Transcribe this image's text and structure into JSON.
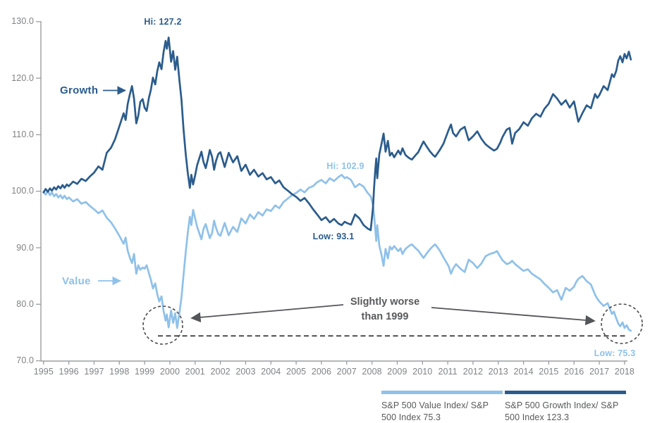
{
  "colors": {
    "growth": "#2b5c8c",
    "value": "#8fc1e9",
    "annotation_gray": "#58595b",
    "axis_gray": "#9b9da0",
    "tick_label_gray": "#808285"
  },
  "y_axis": {
    "labels": [
      "130.0",
      "120.0",
      "110.0",
      "100.0",
      "90.0",
      "80.0",
      "70.0"
    ]
  },
  "x_axis": {
    "labels": [
      "1995",
      "1996",
      "1997",
      "1998",
      "1999",
      "2000",
      "2001",
      "2002",
      "2003",
      "2004",
      "2005",
      "2006",
      "2007",
      "2008",
      "2009",
      "2010",
      "2011",
      "2012",
      "2013",
      "2014",
      "2015",
      "2016",
      "2017",
      "2018"
    ]
  },
  "annotations": {
    "growth_label": "Growth",
    "value_label": "Value",
    "hi_growth": "Hi: 127.2",
    "hi_value": "Hi: 102.9",
    "low_growth": "Low: 93.1",
    "low_value": "Low: 75.3",
    "callout_line1": "Slightly worse",
    "callout_line2": "than 1999"
  },
  "legend": {
    "items": [
      {
        "label": "S&P 500 Value Index/ S&P 500 Index 75.3",
        "color": "#8fc1e9"
      },
      {
        "label": "S&P 500 Growth Index/ S&P 500 Index 123.3",
        "color": "#2b5c8c"
      }
    ]
  },
  "chart_data": {
    "type": "line",
    "title": "",
    "xlabel": "",
    "ylabel": "",
    "xlim": [
      1995,
      2018.6
    ],
    "ylim": [
      70,
      130
    ],
    "y_ticks": [
      130,
      120,
      110,
      100,
      90,
      80,
      70
    ],
    "x_tick_start": 1995,
    "grid": false,
    "legend_position": "bottom-right",
    "extremes": {
      "growth_hi": 127.2,
      "growth_low": 93.1,
      "value_hi": 102.9,
      "value_low": 75.3,
      "growth_end": 123.3,
      "value_end": 75.3
    },
    "dashed_reference_value": 74.4,
    "x": [
      1995.0,
      1995.08,
      1995.17,
      1995.25,
      1995.33,
      1995.42,
      1995.5,
      1995.58,
      1995.67,
      1995.75,
      1995.83,
      1995.92,
      1996.0,
      1996.17,
      1996.33,
      1996.5,
      1996.67,
      1996.83,
      1997.0,
      1997.17,
      1997.33,
      1997.5,
      1997.67,
      1997.83,
      1998.0,
      1998.17,
      1998.25,
      1998.33,
      1998.42,
      1998.5,
      1998.58,
      1998.67,
      1998.75,
      1998.83,
      1998.92,
      1999.0,
      1999.08,
      1999.17,
      1999.25,
      1999.33,
      1999.42,
      1999.5,
      1999.58,
      1999.67,
      1999.75,
      1999.83,
      1999.88,
      1999.95,
      2000.05,
      2000.13,
      2000.21,
      2000.29,
      2000.38,
      2000.46,
      2000.54,
      2000.63,
      2000.71,
      2000.79,
      2000.85,
      2000.92,
      2001.0,
      2001.08,
      2001.17,
      2001.25,
      2001.33,
      2001.42,
      2001.5,
      2001.58,
      2001.67,
      2001.75,
      2001.83,
      2001.92,
      2002.0,
      2002.17,
      2002.33,
      2002.5,
      2002.67,
      2002.83,
      2003.0,
      2003.17,
      2003.33,
      2003.5,
      2003.67,
      2003.83,
      2004.0,
      2004.17,
      2004.33,
      2004.5,
      2004.67,
      2004.83,
      2005.0,
      2005.17,
      2005.33,
      2005.5,
      2005.67,
      2005.83,
      2006.0,
      2006.17,
      2006.33,
      2006.5,
      2006.67,
      2006.8,
      2006.92,
      2007.0,
      2007.17,
      2007.33,
      2007.5,
      2007.67,
      2007.83,
      2007.95,
      2008.04,
      2008.08,
      2008.13,
      2008.17,
      2008.21,
      2008.29,
      2008.38,
      2008.46,
      2008.54,
      2008.63,
      2008.71,
      2008.79,
      2008.88,
      2009.04,
      2009.13,
      2009.21,
      2009.33,
      2009.46,
      2009.58,
      2009.71,
      2009.83,
      2009.93,
      2010.04,
      2010.17,
      2010.29,
      2010.42,
      2010.5,
      2010.67,
      2010.83,
      2011.04,
      2011.13,
      2011.21,
      2011.33,
      2011.5,
      2011.67,
      2011.83,
      2012.0,
      2012.17,
      2012.33,
      2012.5,
      2012.67,
      2012.83,
      2012.95,
      2013.08,
      2013.17,
      2013.33,
      2013.45,
      2013.55,
      2013.67,
      2013.83,
      2014.0,
      2014.17,
      2014.33,
      2014.5,
      2014.67,
      2014.83,
      2015.0,
      2015.17,
      2015.33,
      2015.5,
      2015.67,
      2015.83,
      2016.0,
      2016.08,
      2016.17,
      2016.33,
      2016.5,
      2016.67,
      2016.83,
      2016.92,
      2017.0,
      2017.17,
      2017.33,
      2017.5,
      2017.58,
      2017.67,
      2017.75,
      2017.83,
      2017.92,
      2018.0,
      2018.08,
      2018.17,
      2018.25
    ],
    "series": [
      {
        "name": "S&P 500 Growth Index / S&P 500 Index",
        "color": "#2b5c8c",
        "values": [
          99.8,
          100.4,
          99.9,
          100.5,
          100.1,
          100.7,
          100.3,
          100.9,
          100.5,
          101.1,
          100.6,
          101.2,
          100.9,
          101.7,
          101.3,
          102.2,
          101.8,
          102.6,
          103.3,
          104.4,
          103.8,
          106.8,
          107.7,
          109.2,
          111.5,
          113.8,
          112.6,
          115.4,
          117.2,
          118.6,
          116.4,
          112.0,
          113.4,
          115.8,
          116.3,
          114.8,
          114.2,
          116.5,
          118.0,
          120.1,
          118.9,
          121.2,
          122.8,
          121.6,
          124.6,
          126.6,
          125.2,
          127.2,
          122.9,
          124.8,
          121.5,
          123.8,
          119.5,
          116.2,
          111.0,
          106.5,
          103.2,
          100.6,
          102.9,
          101.2,
          102.8,
          104.6,
          105.9,
          107.0,
          105.2,
          104.1,
          105.6,
          107.3,
          106.1,
          103.8,
          105.4,
          106.6,
          106.9,
          104.3,
          106.8,
          105.1,
          106.2,
          103.6,
          104.7,
          102.9,
          103.8,
          102.6,
          103.2,
          102.1,
          102.5,
          101.4,
          101.9,
          100.7,
          100.1,
          99.5,
          99.0,
          98.3,
          98.8,
          97.9,
          96.8,
          95.9,
          94.9,
          95.4,
          94.5,
          95.1,
          94.3,
          94.0,
          94.6,
          94.4,
          94.1,
          95.9,
          95.2,
          94.0,
          93.4,
          93.1,
          97.0,
          100.4,
          103.6,
          105.8,
          102.3,
          106.5,
          108.4,
          110.2,
          107.0,
          108.9,
          106.3,
          106.8,
          106.0,
          107.2,
          106.5,
          107.6,
          106.4,
          105.9,
          105.6,
          106.3,
          106.9,
          107.8,
          108.8,
          107.9,
          107.1,
          106.4,
          106.1,
          107.2,
          108.4,
          110.9,
          111.8,
          110.3,
          109.7,
          110.9,
          111.4,
          109.0,
          109.7,
          110.6,
          109.3,
          108.3,
          107.7,
          107.2,
          107.5,
          108.6,
          109.6,
          110.9,
          111.2,
          108.4,
          110.3,
          111.0,
          112.2,
          111.6,
          112.9,
          113.7,
          113.2,
          114.6,
          115.5,
          117.2,
          116.4,
          115.3,
          116.1,
          114.8,
          115.9,
          114.2,
          112.3,
          113.8,
          115.2,
          114.7,
          117.2,
          116.5,
          117.0,
          118.6,
          117.9,
          120.7,
          120.2,
          121.3,
          123.1,
          123.9,
          122.8,
          124.3,
          123.5,
          124.7,
          123.3
        ]
      },
      {
        "name": "S&P 500 Value Index / S&P 500 Index",
        "color": "#8fc1e9",
        "values": [
          99.9,
          99.4,
          100.0,
          99.3,
          99.8,
          99.1,
          99.5,
          98.9,
          99.3,
          98.7,
          99.2,
          98.6,
          98.9,
          98.2,
          98.6,
          97.8,
          98.1,
          97.4,
          96.8,
          96.1,
          96.6,
          95.3,
          94.5,
          93.4,
          92.1,
          90.7,
          91.8,
          89.5,
          88.2,
          87.3,
          88.9,
          85.4,
          86.9,
          86.1,
          86.5,
          86.3,
          86.9,
          85.5,
          84.3,
          82.8,
          83.7,
          81.8,
          80.5,
          81.4,
          78.8,
          77.1,
          78.2,
          75.9,
          78.9,
          76.7,
          78.4,
          75.8,
          78.6,
          81.2,
          85.1,
          89.3,
          92.7,
          95.5,
          94.0,
          96.7,
          95.2,
          93.7,
          92.5,
          91.5,
          93.3,
          94.2,
          92.9,
          91.7,
          92.6,
          94.8,
          93.5,
          92.4,
          92.1,
          94.4,
          92.2,
          93.7,
          92.8,
          95.2,
          94.3,
          95.9,
          95.1,
          96.3,
          95.7,
          96.8,
          96.5,
          97.5,
          97.0,
          98.1,
          98.7,
          99.3,
          99.7,
          100.3,
          99.8,
          100.6,
          100.9,
          101.6,
          102.0,
          101.4,
          102.3,
          101.8,
          102.5,
          102.9,
          102.3,
          102.5,
          102.0,
          100.7,
          101.3,
          100.8,
          99.7,
          99.1,
          97.6,
          95.9,
          93.4,
          91.2,
          94.0,
          90.4,
          88.7,
          86.8,
          89.8,
          88.1,
          90.2,
          89.7,
          90.3,
          89.4,
          89.9,
          88.9,
          89.8,
          90.3,
          90.6,
          90.0,
          89.5,
          88.9,
          88.2,
          89.0,
          89.7,
          90.3,
          90.6,
          89.6,
          88.3,
          86.7,
          85.4,
          86.3,
          87.1,
          86.3,
          85.7,
          87.9,
          87.3,
          86.4,
          87.2,
          88.5,
          88.9,
          89.1,
          89.4,
          88.4,
          87.8,
          87.1,
          87.3,
          87.7,
          87.1,
          86.5,
          85.9,
          86.2,
          85.4,
          84.9,
          84.4,
          83.6,
          82.9,
          82.1,
          82.5,
          80.8,
          82.9,
          82.4,
          83.1,
          83.9,
          84.5,
          85.0,
          84.1,
          83.5,
          81.7,
          81.0,
          80.5,
          79.7,
          80.2,
          78.3,
          78.7,
          77.5,
          76.6,
          76.1,
          76.8,
          75.8,
          76.3,
          75.5,
          75.3
        ]
      }
    ]
  }
}
